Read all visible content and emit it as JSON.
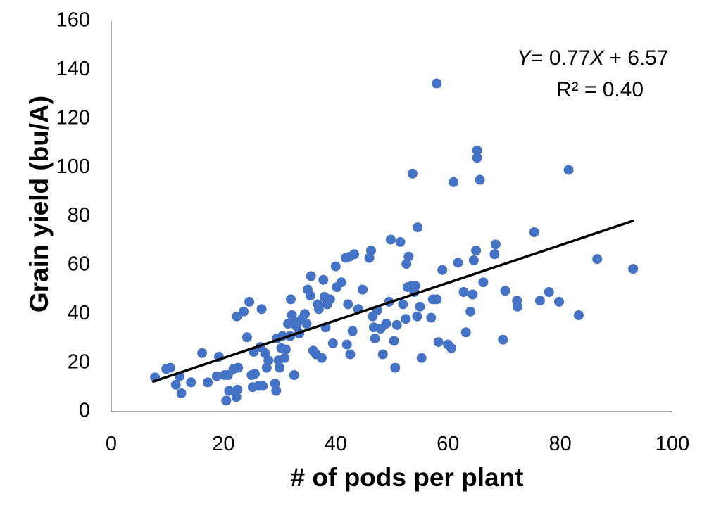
{
  "chart_data": {
    "type": "scatter",
    "xlabel": "# of pods per plant",
    "ylabel": "Grain yield (bu/A)",
    "xlim": [
      0,
      100
    ],
    "ylim": [
      0,
      160
    ],
    "x_ticks": [
      "0",
      "20",
      "40",
      "60",
      "80",
      "100"
    ],
    "y_ticks": [
      "0",
      "20",
      "40",
      "60",
      "80",
      "100",
      "120",
      "140",
      "160"
    ],
    "grid": false,
    "legend": "none",
    "point_color": "#4472C4",
    "trendline_color": "#000000",
    "equation": {
      "y_var": "Y",
      "rhs": "= 0.77",
      "x_var": "X",
      "tail": " + 6.57",
      "r2": "R² = 0.40"
    },
    "trendline": {
      "slope": 0.77,
      "intercept": 6.57,
      "x_range": [
        7.5,
        93
      ]
    },
    "points": [
      [
        7.8,
        14
      ],
      [
        9.8,
        17.5
      ],
      [
        10.5,
        18
      ],
      [
        11.5,
        11
      ],
      [
        12.2,
        14.5
      ],
      [
        12.5,
        7.5
      ],
      [
        14.2,
        12
      ],
      [
        16.2,
        24
      ],
      [
        17.2,
        12
      ],
      [
        18.8,
        14.5
      ],
      [
        19.2,
        22.5
      ],
      [
        20.2,
        15
      ],
      [
        20.5,
        4.5
      ],
      [
        20.8,
        15
      ],
      [
        21,
        8.5
      ],
      [
        21.8,
        17.5
      ],
      [
        22.3,
        6
      ],
      [
        22.5,
        9
      ],
      [
        22.6,
        18
      ],
      [
        22.4,
        39
      ],
      [
        23.6,
        41
      ],
      [
        24.2,
        30.5
      ],
      [
        24.6,
        45
      ],
      [
        25,
        15
      ],
      [
        25.2,
        10
      ],
      [
        25.4,
        24.5
      ],
      [
        25.6,
        15.5
      ],
      [
        26.2,
        10.5
      ],
      [
        26.6,
        26.5
      ],
      [
        26.8,
        42
      ],
      [
        27,
        10.5
      ],
      [
        27.4,
        24
      ],
      [
        27.7,
        18
      ],
      [
        28,
        21
      ],
      [
        29.2,
        11.5
      ],
      [
        29.4,
        8.5
      ],
      [
        29.5,
        30
      ],
      [
        29.8,
        21
      ],
      [
        30,
        18
      ],
      [
        30.3,
        26
      ],
      [
        30.5,
        31
      ],
      [
        30.9,
        22
      ],
      [
        31.1,
        25.5
      ],
      [
        31.5,
        36
      ],
      [
        31.9,
        31
      ],
      [
        32.2,
        39.5
      ],
      [
        32.6,
        15
      ],
      [
        32,
        46
      ],
      [
        32.5,
        37
      ],
      [
        33,
        35
      ],
      [
        33.5,
        32
      ],
      [
        34,
        38
      ],
      [
        34.5,
        40
      ],
      [
        34.8,
        36
      ],
      [
        35,
        50
      ],
      [
        35.5,
        47.5
      ],
      [
        35.6,
        55.5
      ],
      [
        36,
        25
      ],
      [
        36.5,
        23.5
      ],
      [
        36.8,
        44
      ],
      [
        37,
        42
      ],
      [
        37.5,
        22
      ],
      [
        37.8,
        54
      ],
      [
        38,
        47
      ],
      [
        38.2,
        34.5
      ],
      [
        38.5,
        44
      ],
      [
        39,
        46
      ],
      [
        39.5,
        28
      ],
      [
        40,
        59.5
      ],
      [
        40.2,
        51
      ],
      [
        41,
        53
      ],
      [
        41.8,
        63
      ],
      [
        42,
        27.5
      ],
      [
        42.2,
        44
      ],
      [
        42.5,
        63.5
      ],
      [
        42.6,
        23.5
      ],
      [
        43,
        33
      ],
      [
        43.3,
        64.5
      ],
      [
        44,
        42
      ],
      [
        44.8,
        50
      ],
      [
        46,
        63
      ],
      [
        46.3,
        66
      ],
      [
        46.6,
        39
      ],
      [
        46.8,
        34.5
      ],
      [
        47,
        30
      ],
      [
        47.4,
        41.5
      ],
      [
        48,
        34
      ],
      [
        48.4,
        23.5
      ],
      [
        49,
        36
      ],
      [
        49.5,
        45
      ],
      [
        49.8,
        70.5
      ],
      [
        50.4,
        29
      ],
      [
        50.6,
        18
      ],
      [
        50.9,
        35.5
      ],
      [
        51.5,
        69.5
      ],
      [
        52,
        44
      ],
      [
        52.5,
        38
      ],
      [
        52.6,
        60.5
      ],
      [
        52.8,
        51
      ],
      [
        53,
        63.5
      ],
      [
        53.5,
        51.5
      ],
      [
        53.7,
        97.5
      ],
      [
        54,
        49
      ],
      [
        54.2,
        51.5
      ],
      [
        54.5,
        39
      ],
      [
        54.6,
        75.5
      ],
      [
        55,
        43
      ],
      [
        55.3,
        22
      ],
      [
        57,
        38.5
      ],
      [
        57.3,
        46
      ],
      [
        58,
        134.5
      ],
      [
        58.3,
        28.5
      ],
      [
        58,
        46
      ],
      [
        59,
        58
      ],
      [
        60,
        27.5
      ],
      [
        60.6,
        26
      ],
      [
        61,
        94
      ],
      [
        61.8,
        61
      ],
      [
        62.8,
        49
      ],
      [
        63.2,
        32.5
      ],
      [
        64,
        41
      ],
      [
        64.4,
        48
      ],
      [
        64.6,
        62
      ],
      [
        65,
        66
      ],
      [
        65.2,
        107
      ],
      [
        65.2,
        104
      ],
      [
        65.7,
        95
      ],
      [
        66.3,
        53
      ],
      [
        68.3,
        64.5
      ],
      [
        68.5,
        68.5
      ],
      [
        69.8,
        29.5
      ],
      [
        70.2,
        49.5
      ],
      [
        72.3,
        45.5
      ],
      [
        72.4,
        43
      ],
      [
        75.4,
        73.5
      ],
      [
        76.4,
        45.5
      ],
      [
        78,
        49
      ],
      [
        79.8,
        45
      ],
      [
        81.5,
        99
      ],
      [
        83.3,
        39.5
      ],
      [
        86.6,
        62.5
      ],
      [
        93,
        58.5
      ]
    ]
  }
}
